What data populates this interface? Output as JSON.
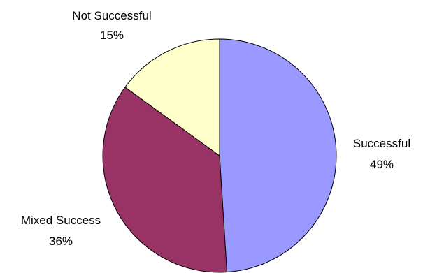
{
  "chart_data": {
    "type": "pie",
    "title": "",
    "slices": [
      {
        "label": "Successful",
        "value": 49,
        "display": "49%",
        "color": "#9999FF"
      },
      {
        "label": "Mixed Success",
        "value": 36,
        "display": "36%",
        "color": "#993366"
      },
      {
        "label": "Not Successful",
        "value": 15,
        "display": "15%",
        "color": "#FFFFCC"
      }
    ],
    "start": "12 o'clock",
    "direction": "clockwise",
    "legend": "none"
  }
}
